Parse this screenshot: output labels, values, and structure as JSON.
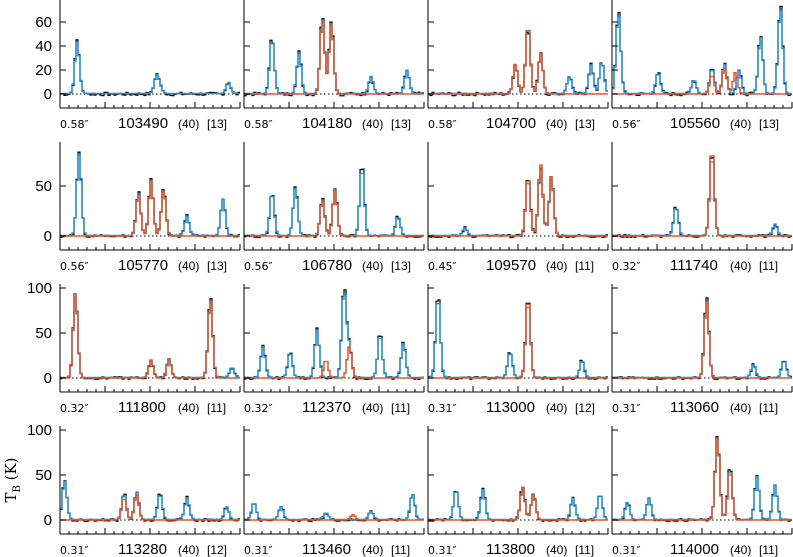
{
  "chart_data": {
    "type": "line",
    "ylabel_main": "T",
    "ylabel_sub": "B",
    "ylabel_unit": "(K)",
    "colors": {
      "observed": "#000000",
      "model_total": "#1f8fd6",
      "model_species": "#e3562a",
      "baseline": "#000000"
    },
    "rows": [
      {
        "yticks": [
          0,
          20,
          40,
          60
        ],
        "ymax": 75
      },
      {
        "yticks": [
          0,
          50
        ],
        "ymax": 90
      },
      {
        "yticks": [
          0,
          50,
          100
        ],
        "ymax": 100
      },
      {
        "yticks": [
          0,
          50,
          100
        ],
        "ymax": 100
      }
    ],
    "panels": [
      {
        "res": "0.58″",
        "freq": "103490",
        "width": "(40)",
        "ref": "[13]",
        "peaks": [
          [
            0.09,
            45,
            0
          ],
          [
            0.53,
            15,
            0
          ],
          [
            0.93,
            10,
            0
          ],
          [
            0.55,
            5,
            0
          ]
        ],
        "orange": []
      },
      {
        "res": "0.58″",
        "freq": "104180",
        "width": "(40)",
        "ref": "[13]",
        "peaks": [
          [
            0.15,
            48,
            0
          ],
          [
            0.3,
            35,
            0
          ],
          [
            0.43,
            66,
            1
          ],
          [
            0.48,
            62,
            1
          ],
          [
            0.7,
            15,
            0
          ],
          [
            0.9,
            20,
            0
          ]
        ],
        "orange": [
          [
            0.43,
            62
          ],
          [
            0.48,
            58
          ]
        ]
      },
      {
        "res": "0.58″",
        "freq": "104700",
        "width": "(40)",
        "ref": "[13]",
        "peaks": [
          [
            0.48,
            25,
            1
          ],
          [
            0.55,
            57,
            1
          ],
          [
            0.62,
            35,
            1
          ],
          [
            0.78,
            15,
            0
          ],
          [
            0.9,
            25,
            0
          ],
          [
            0.96,
            28,
            0
          ]
        ],
        "orange": [
          [
            0.48,
            25
          ],
          [
            0.55,
            58
          ],
          [
            0.62,
            34
          ]
        ]
      },
      {
        "res": "0.56″",
        "freq": "105560",
        "width": "(40)",
        "ref": "[13]",
        "peaks": [
          [
            0.03,
            70,
            0
          ],
          [
            0.25,
            18,
            0
          ],
          [
            0.45,
            12,
            0
          ],
          [
            0.55,
            22,
            1
          ],
          [
            0.62,
            26,
            1
          ],
          [
            0.7,
            20,
            0
          ],
          [
            0.82,
            50,
            0
          ],
          [
            0.93,
            75,
            0
          ]
        ],
        "orange": [
          [
            0.55,
            16
          ],
          [
            0.62,
            22
          ],
          [
            0.68,
            18
          ]
        ]
      },
      {
        "res": "0.56″",
        "freq": "105770",
        "width": "(40)",
        "ref": "[13]",
        "peaks": [
          [
            0.1,
            85,
            0
          ],
          [
            0.43,
            45,
            1
          ],
          [
            0.5,
            58,
            1
          ],
          [
            0.57,
            48,
            1
          ],
          [
            0.7,
            20,
            0
          ],
          [
            0.9,
            38,
            0
          ]
        ],
        "orange": [
          [
            0.43,
            42
          ],
          [
            0.5,
            55
          ],
          [
            0.57,
            45
          ]
        ]
      },
      {
        "res": "0.56″",
        "freq": "106780",
        "width": "(40)",
        "ref": "[13]",
        "peaks": [
          [
            0.15,
            45,
            0
          ],
          [
            0.28,
            50,
            0
          ],
          [
            0.43,
            38,
            1
          ],
          [
            0.5,
            48,
            1
          ],
          [
            0.65,
            72,
            0
          ],
          [
            0.85,
            20,
            0
          ]
        ],
        "orange": [
          [
            0.43,
            36
          ],
          [
            0.5,
            46
          ]
        ]
      },
      {
        "res": "0.45″",
        "freq": "109570",
        "width": "(40)",
        "ref": "[11]",
        "peaks": [
          [
            0.55,
            60,
            1
          ],
          [
            0.62,
            70,
            1
          ],
          [
            0.68,
            60,
            1
          ],
          [
            0.2,
            8,
            0
          ]
        ],
        "orange": [
          [
            0.55,
            60
          ],
          [
            0.62,
            72
          ],
          [
            0.68,
            60
          ]
        ]
      },
      {
        "res": "0.32″",
        "freq": "111740",
        "width": "(40)",
        "ref": "[11]",
        "peaks": [
          [
            0.35,
            30,
            0
          ],
          [
            0.55,
            85,
            1
          ],
          [
            0.9,
            12,
            0
          ]
        ],
        "orange": [
          [
            0.55,
            88
          ]
        ]
      },
      {
        "res": "0.32″",
        "freq": "111800",
        "width": "(40)",
        "ref": "[11]",
        "peaks": [
          [
            0.08,
            95,
            1
          ],
          [
            0.5,
            20,
            1
          ],
          [
            0.6,
            22,
            1
          ],
          [
            0.83,
            90,
            1
          ],
          [
            0.95,
            12,
            0
          ]
        ],
        "orange": [
          [
            0.08,
            95
          ],
          [
            0.5,
            20
          ],
          [
            0.6,
            20
          ],
          [
            0.83,
            88
          ]
        ]
      },
      {
        "res": "0.32″",
        "freq": "112370",
        "width": "(40)",
        "ref": "[11]",
        "peaks": [
          [
            0.1,
            35,
            0
          ],
          [
            0.25,
            30,
            0
          ],
          [
            0.4,
            55,
            0
          ],
          [
            0.55,
            100,
            0
          ],
          [
            0.58,
            35,
            1
          ],
          [
            0.75,
            50,
            0
          ],
          [
            0.88,
            40,
            0
          ]
        ],
        "orange": [
          [
            0.45,
            20
          ],
          [
            0.58,
            35
          ]
        ]
      },
      {
        "res": "0.31″",
        "freq": "113000",
        "width": "(40)",
        "ref": "[12]",
        "peaks": [
          [
            0.05,
            95,
            0
          ],
          [
            0.45,
            30,
            0
          ],
          [
            0.55,
            90,
            1
          ],
          [
            0.85,
            20,
            0
          ]
        ],
        "orange": [
          [
            0.55,
            90
          ]
        ]
      },
      {
        "res": "0.31″",
        "freq": "113060",
        "width": "(40)",
        "ref": "[11]",
        "peaks": [
          [
            0.52,
            90,
            1
          ],
          [
            0.78,
            15,
            0
          ],
          [
            0.95,
            20,
            0
          ]
        ],
        "orange": [
          [
            0.52,
            85
          ]
        ]
      },
      {
        "res": "0.31″",
        "freq": "113280",
        "width": "(40)",
        "ref": "[12]",
        "peaks": [
          [
            0.02,
            45,
            0
          ],
          [
            0.35,
            30,
            1
          ],
          [
            0.42,
            32,
            1
          ],
          [
            0.55,
            30,
            0
          ],
          [
            0.7,
            25,
            0
          ],
          [
            0.92,
            15,
            0
          ]
        ],
        "orange": [
          [
            0.35,
            25
          ],
          [
            0.42,
            28
          ]
        ]
      },
      {
        "res": "0.31″",
        "freq": "113460",
        "width": "(40)",
        "ref": "[11]",
        "peaks": [
          [
            0.05,
            20,
            0
          ],
          [
            0.2,
            15,
            0
          ],
          [
            0.45,
            8,
            0
          ],
          [
            0.7,
            10,
            0
          ],
          [
            0.93,
            30,
            0
          ]
        ],
        "orange": [
          [
            0.6,
            6
          ]
        ]
      },
      {
        "res": "0.31″",
        "freq": "113800",
        "width": "(40)",
        "ref": "[11]",
        "peaks": [
          [
            0.15,
            35,
            0
          ],
          [
            0.3,
            35,
            0
          ],
          [
            0.52,
            38,
            1
          ],
          [
            0.58,
            30,
            1
          ],
          [
            0.8,
            25,
            0
          ],
          [
            0.95,
            30,
            0
          ]
        ],
        "orange": [
          [
            0.52,
            35
          ],
          [
            0.58,
            28
          ]
        ]
      },
      {
        "res": "0.31″",
        "freq": "114000",
        "width": "(40)",
        "ref": "[11]",
        "peaks": [
          [
            0.08,
            20,
            0
          ],
          [
            0.2,
            25,
            0
          ],
          [
            0.58,
            95,
            1
          ],
          [
            0.65,
            60,
            1
          ],
          [
            0.8,
            50,
            0
          ],
          [
            0.9,
            40,
            0
          ]
        ],
        "orange": [
          [
            0.58,
            92
          ],
          [
            0.65,
            55
          ]
        ]
      }
    ]
  }
}
